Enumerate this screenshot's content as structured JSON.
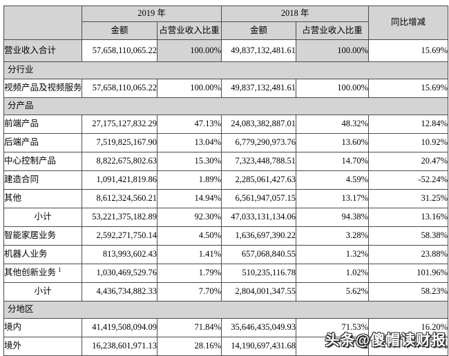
{
  "table": {
    "header": {
      "corner": "",
      "year_2019": "2019 年",
      "year_2018": "2018 年",
      "yoy": "同比增减",
      "amount": "金额",
      "ratio": "占营业收入比重"
    },
    "rows": [
      {
        "type": "data",
        "shaded": true,
        "first": true,
        "label": "营业收入合计",
        "values": [
          "57,658,110,065.22",
          "100.00%",
          "49,837,132,481.61",
          "100.00%",
          "15.69%"
        ]
      },
      {
        "type": "section",
        "label": "分行业"
      },
      {
        "type": "data",
        "label": "视频产品及视频服务",
        "values": [
          "57,658,110,065.22",
          "100.00%",
          "49,837,132,481.61",
          "100.00%",
          "15.69%"
        ]
      },
      {
        "type": "section",
        "label": "分产品"
      },
      {
        "type": "data",
        "label": "前端产品",
        "values": [
          "27,175,127,832.29",
          "47.13%",
          "24,083,382,887.01",
          "48.32%",
          "12.84%"
        ]
      },
      {
        "type": "data",
        "label": "后端产品",
        "values": [
          "7,519,825,167.90",
          "13.04%",
          "6,779,290,973.76",
          "13.60%",
          "10.92%"
        ]
      },
      {
        "type": "data",
        "label": "中心控制产品",
        "values": [
          "8,822,675,802.63",
          "15.30%",
          "7,323,448,788.51",
          "14.70%",
          "20.47%"
        ]
      },
      {
        "type": "data",
        "label": "建造合同",
        "values": [
          "1,091,421,819.86",
          "1.89%",
          "2,285,061,427.63",
          "4.59%",
          "-52.24%"
        ]
      },
      {
        "type": "data",
        "label": "其他",
        "values": [
          "8,612,324,560.21",
          "14.94%",
          "6,561,947,057.15",
          "13.17%",
          "31.25%"
        ]
      },
      {
        "type": "subtotal",
        "label": "小计",
        "values": [
          "53,221,375,182.89",
          "92.30%",
          "47,033,131,134.06",
          "94.38%",
          "13.16%"
        ]
      },
      {
        "type": "data",
        "label": "智能家居业务",
        "values": [
          "2,592,271,750.14",
          "4.50%",
          "1,636,697,390.22",
          "3.28%",
          "58.38%"
        ]
      },
      {
        "type": "data",
        "label": "机器人业务",
        "values": [
          "813,993,602.43",
          "1.41%",
          "657,068,840.55",
          "1.32%",
          "23.88%"
        ]
      },
      {
        "type": "data",
        "label": "其他创新业务",
        "label_sup": "1",
        "values": [
          "1,030,469,529.76",
          "1.79%",
          "510,235,116.78",
          "1.02%",
          "101.96%"
        ]
      },
      {
        "type": "subtotal",
        "label": "小计",
        "values": [
          "4,436,734,882.33",
          "7.70%",
          "2,804,001,347.55",
          "5.62%",
          "58.23%"
        ]
      },
      {
        "type": "section",
        "label": "分地区"
      },
      {
        "type": "data",
        "label": "境内",
        "values": [
          "41,419,508,094.09",
          "71.84%",
          "35,646,435,049.93",
          "71.53%",
          "16.20%"
        ]
      },
      {
        "type": "data",
        "label": "境外",
        "obscured": [
          3,
          4
        ],
        "values": [
          "16,238,601,971.13",
          "28.16%",
          "14,190,697,431.68",
          "2",
          "%"
        ]
      }
    ]
  },
  "watermark": {
    "text": "头条@傻帽读财报"
  }
}
